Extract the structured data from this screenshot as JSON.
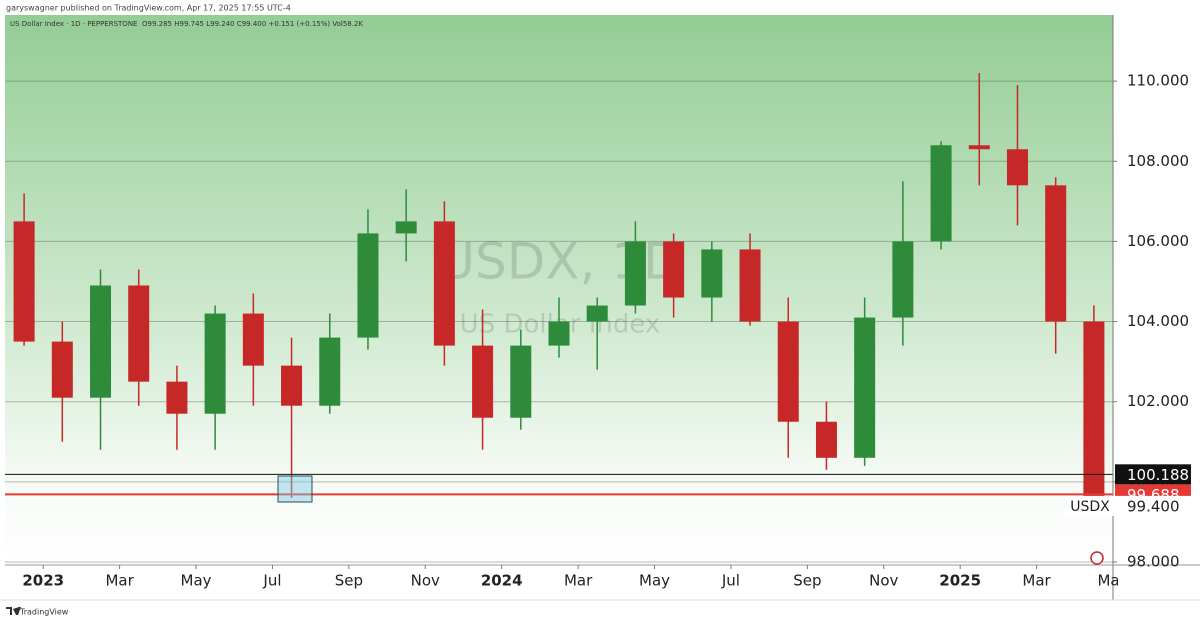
{
  "header": "garyswagner published on TradingView.com, Apr 17, 2025 17:55 UTC-4",
  "footer": "TradingView",
  "chart_data": {
    "type": "candlestick",
    "title": "US Dollar Index · 1D · PEPPERSTONE",
    "ohlc_label": "O99.285 H99.745 L99.240 C99.400 +0.151 (+0.15%) Vol58.2K",
    "watermark": "USDX, 1D",
    "watermark_subtitle": "US Dollar Index",
    "x": [
      "2022-12",
      "2023-01",
      "2023-02",
      "2023-03",
      "2023-04",
      "2023-05",
      "2023-06",
      "2023-07",
      "2023-08",
      "2023-09",
      "2023-10",
      "2023-11",
      "2023-12",
      "2024-01",
      "2024-02",
      "2024-03",
      "2024-04",
      "2024-05",
      "2024-06",
      "2024-07",
      "2024-08",
      "2024-09",
      "2024-10",
      "2024-11",
      "2024-12",
      "2025-01",
      "2025-02",
      "2025-03",
      "2025-04"
    ],
    "open": [
      106.5,
      103.5,
      102.1,
      104.9,
      102.5,
      101.7,
      104.2,
      102.9,
      101.9,
      103.6,
      106.2,
      106.5,
      103.4,
      101.6,
      103.4,
      104.0,
      104.4,
      106.0,
      104.6,
      105.8,
      104.0,
      101.5,
      100.6,
      104.1,
      106.0,
      108.4,
      108.3,
      107.4,
      104.0
    ],
    "high": [
      107.2,
      104.0,
      105.3,
      105.3,
      102.9,
      104.4,
      104.7,
      103.6,
      104.2,
      106.8,
      107.3,
      107.0,
      104.3,
      103.8,
      104.6,
      104.6,
      106.5,
      106.2,
      106.0,
      106.2,
      104.6,
      102.0,
      104.6,
      107.5,
      108.5,
      110.2,
      109.9,
      107.6,
      104.4
    ],
    "low": [
      103.4,
      101.0,
      100.8,
      101.9,
      100.8,
      100.8,
      101.9,
      99.6,
      101.7,
      103.3,
      105.5,
      102.9,
      100.8,
      101.3,
      103.1,
      102.8,
      104.2,
      104.1,
      104.0,
      103.9,
      100.6,
      100.3,
      100.4,
      103.4,
      105.8,
      107.4,
      106.4,
      103.2,
      99.2
    ],
    "close": [
      103.5,
      102.1,
      104.9,
      102.5,
      101.7,
      104.2,
      102.9,
      101.9,
      103.6,
      106.2,
      106.5,
      103.4,
      101.6,
      103.4,
      104.0,
      104.4,
      106.0,
      104.6,
      105.8,
      104.0,
      101.5,
      100.6,
      104.1,
      106.0,
      108.4,
      108.3,
      107.4,
      104.0,
      99.4
    ],
    "up_color": "#2e8b3a",
    "down_color": "#c62828",
    "xlim": [
      "2022-12",
      "2025-05"
    ],
    "xticks": [
      {
        "value": "2023-01",
        "label": "2023"
      },
      {
        "value": "2023-03",
        "label": "Mar"
      },
      {
        "value": "2023-05",
        "label": "May"
      },
      {
        "value": "2023-07",
        "label": "Jul"
      },
      {
        "value": "2023-09",
        "label": "Sep"
      },
      {
        "value": "2023-11",
        "label": "Nov"
      },
      {
        "value": "2024-01",
        "label": "2024"
      },
      {
        "value": "2024-03",
        "label": "Mar"
      },
      {
        "value": "2024-05",
        "label": "May"
      },
      {
        "value": "2024-07",
        "label": "Jul"
      },
      {
        "value": "2024-09",
        "label": "Sep"
      },
      {
        "value": "2024-11",
        "label": "Nov"
      },
      {
        "value": "2025-01",
        "label": "2025"
      },
      {
        "value": "2025-03",
        "label": "Mar"
      },
      {
        "value": "2025-05",
        "label": "May"
      }
    ],
    "ylim": [
      97.925,
      111.65
    ],
    "yticks": [
      {
        "value": 98,
        "label": "98.000"
      },
      {
        "value": 100,
        "label": "100.000"
      },
      {
        "value": 102,
        "label": "102.000"
      },
      {
        "value": 104,
        "label": "104.000"
      },
      {
        "value": 106,
        "label": "106.000"
      },
      {
        "value": 108,
        "label": "108.000"
      },
      {
        "value": 110,
        "label": "110.000"
      }
    ],
    "grid": true,
    "levels": [
      {
        "value": 99.688,
        "label": "99.688",
        "color": "#e53935"
      },
      {
        "value": 100.188,
        "label": "100.188",
        "color": "#111111"
      }
    ],
    "last_price": {
      "value": 99.4,
      "label": "99.400",
      "symbol": "USDX"
    }
  }
}
